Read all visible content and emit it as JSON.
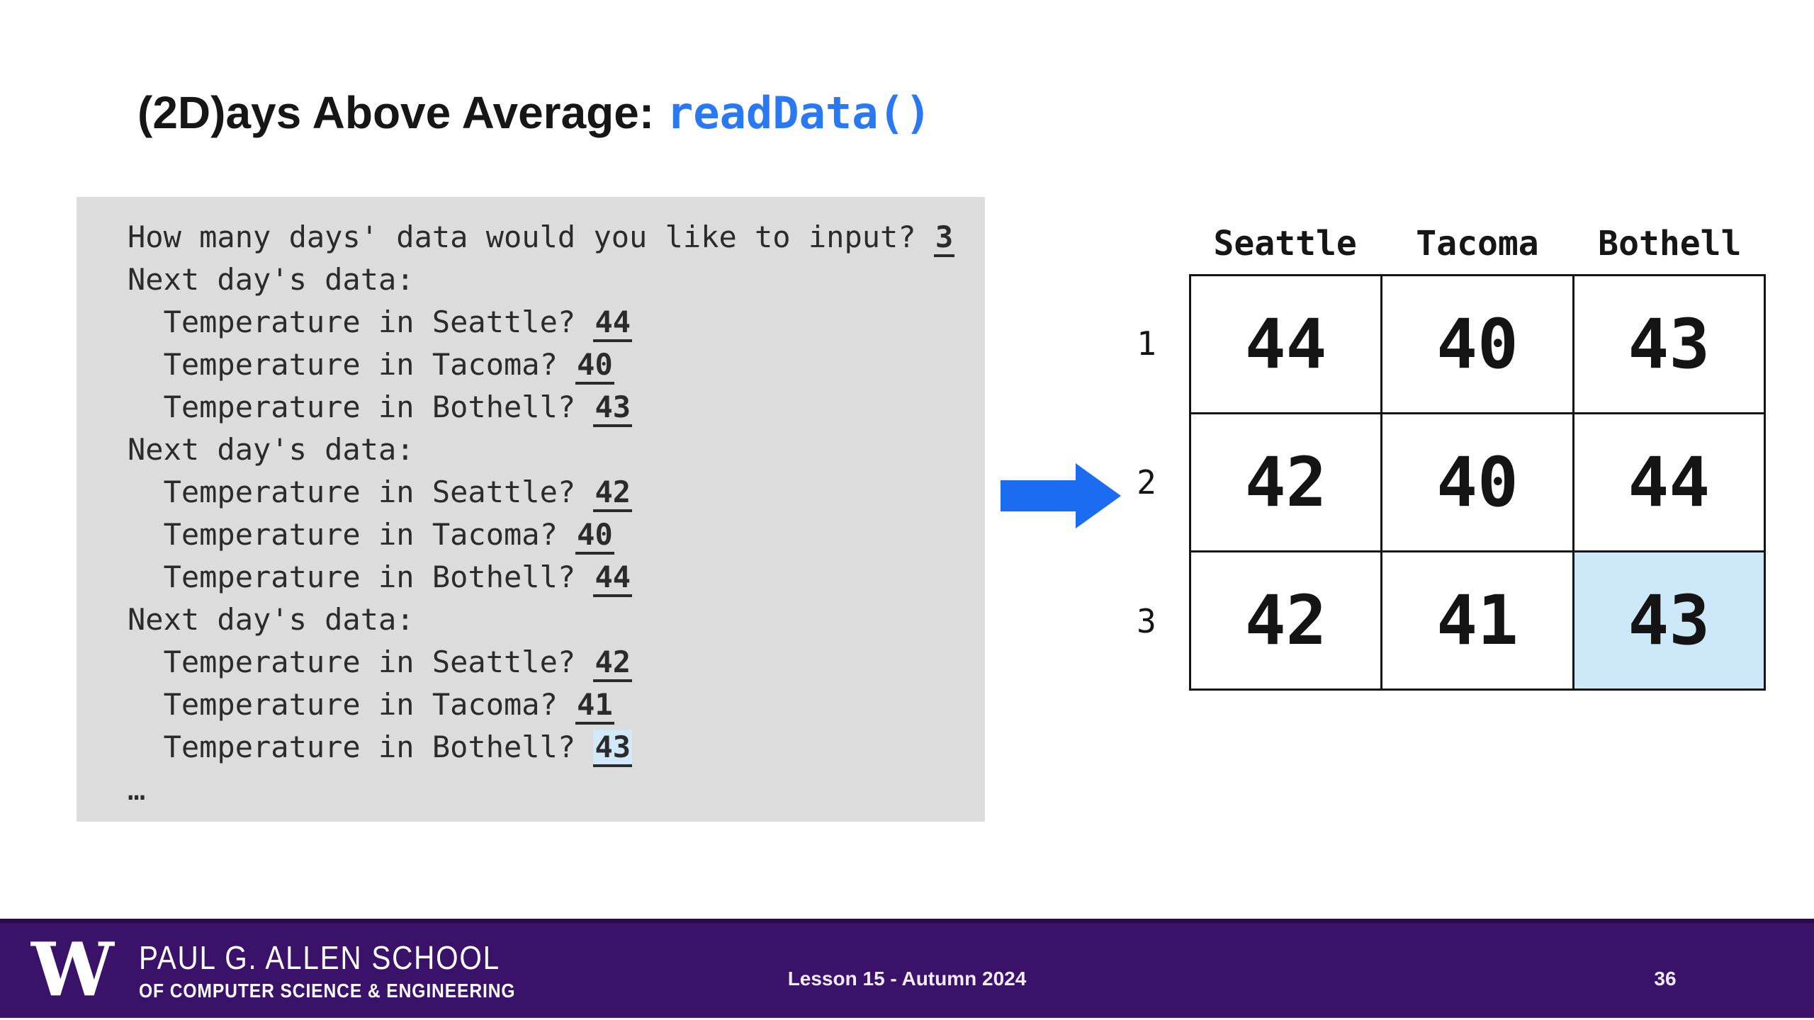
{
  "slide": {
    "title_plain": "(2D)ays Above Average: ",
    "title_code": "readData()",
    "page_number": "36"
  },
  "console": {
    "lines": [
      {
        "text": "How many days' data would you like to input? ",
        "value": "3"
      },
      {
        "text": "Next day's data:"
      },
      {
        "text": "  Temperature in Seattle? ",
        "value": "44"
      },
      {
        "text": "  Temperature in Tacoma? ",
        "value": "40"
      },
      {
        "text": "  Temperature in Bothell? ",
        "value": "43"
      },
      {
        "text": "Next day's data:"
      },
      {
        "text": "  Temperature in Seattle? ",
        "value": "42"
      },
      {
        "text": "  Temperature in Tacoma? ",
        "value": "40"
      },
      {
        "text": "  Temperature in Bothell? ",
        "value": "44"
      },
      {
        "text": "Next day's data:"
      },
      {
        "text": "  Temperature in Seattle? ",
        "value": "42"
      },
      {
        "text": "  Temperature in Tacoma? ",
        "value": "41"
      },
      {
        "text": "  Temperature in Bothell? ",
        "value": "43",
        "highlighted": true
      },
      {
        "text": "…"
      }
    ]
  },
  "arrow": {
    "icon": "right-block-arrow",
    "color": "#1c6cf2"
  },
  "table": {
    "columns": [
      "Seattle",
      "Tacoma",
      "Bothell"
    ],
    "row_labels": [
      "1",
      "2",
      "3"
    ],
    "rows": [
      [
        "44",
        "40",
        "43"
      ],
      [
        "42",
        "40",
        "44"
      ],
      [
        "42",
        "41",
        "43"
      ]
    ],
    "highlight_cell": {
      "row": 2,
      "col": 2
    }
  },
  "footer": {
    "logo_letter": "W",
    "school_line1": "PAUL G. ALLEN SCHOOL",
    "school_line2": "OF COMPUTER SCIENCE & ENGINEERING",
    "lesson": "Lesson 15 - Autumn 2024"
  },
  "colors": {
    "accent_code_blue": "#2a78f2",
    "arrow_blue": "#1c6cf2",
    "console_background": "#dcdcdc",
    "highlight_blue": "#cde8f8",
    "footer_purple": "#3b1269",
    "footer_edge_purple": "#2a0a53"
  }
}
